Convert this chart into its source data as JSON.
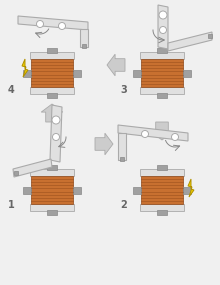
{
  "bg": "#f0f0f0",
  "coil_fill": "#c87030",
  "coil_line": "#904818",
  "frame_fill": "#e0e0e0",
  "frame_edge": "#aaaaaa",
  "shaft_fill": "#a0a0a0",
  "shaft_edge": "#888888",
  "arrow_fill": "#cccccc",
  "arrow_edge": "#aaaaaa",
  "bolt_fill": "#e8e8e8",
  "lit_fill": "#f0d000",
  "lit_edge": "#b09000",
  "label_c": "#666666",
  "white": "#ffffff",
  "steps": [
    "1",
    "2",
    "3",
    "4"
  ],
  "n_coil_lines": 9
}
